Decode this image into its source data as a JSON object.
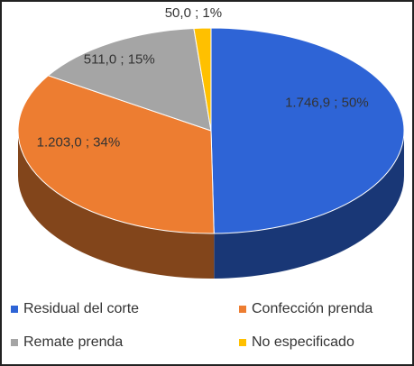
{
  "chart_data": {
    "type": "pie3d",
    "categories": [
      "Residual del corte",
      "Confección prenda",
      "Remate prenda",
      "No especificado"
    ],
    "values": [
      1746.9,
      1203.0,
      511.0,
      50.0
    ],
    "value_labels": [
      "1.746,9 ; 50%",
      "1.203,0 ; 34%",
      "511,0 ; 15%",
      "50,0 ; 1%"
    ],
    "colors": [
      "#2e64d6",
      "#ed7d31",
      "#a5a5a5",
      "#ffc000"
    ],
    "legend": "bottom"
  }
}
